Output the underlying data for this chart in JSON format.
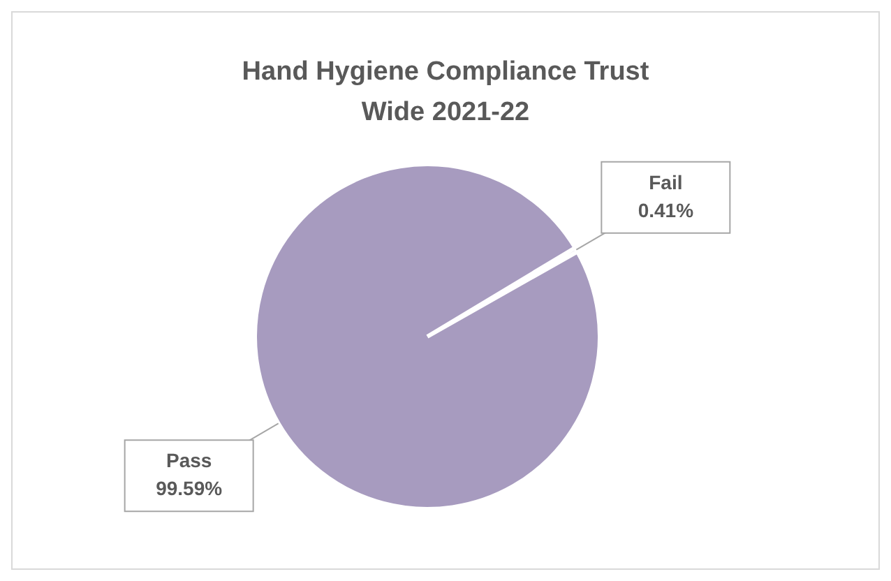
{
  "chart_data": {
    "type": "pie",
    "title": "Hand Hygiene Compliance Trust Wide 2021-22",
    "categories": [
      "Fail",
      "Pass"
    ],
    "values": [
      0.41,
      99.59
    ],
    "colors": [
      "#a79bbf",
      "#a79bbf"
    ],
    "value_labels": [
      "0.41%",
      "99.59%"
    ],
    "legend": false
  }
}
